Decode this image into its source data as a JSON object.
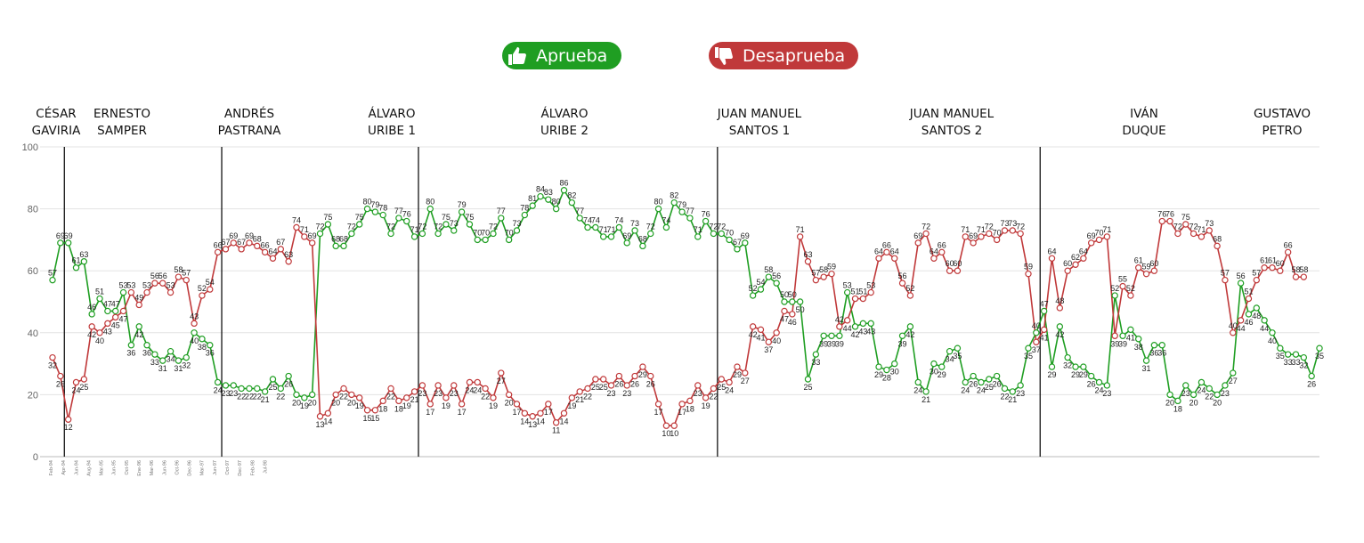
{
  "legend": {
    "approve": {
      "label": "Aprueba",
      "color": "#1f9e22"
    },
    "disapprove": {
      "label": "Desaprueba",
      "color": "#c0393a"
    }
  },
  "presidents": [
    {
      "name": "CÉSAR\nGAVIRIA"
    },
    {
      "name": "ERNESTO\nSAMPER"
    },
    {
      "name": "ANDRÉS\nPASTRANA"
    },
    {
      "name": "ÁLVARO\nURIBE 1"
    },
    {
      "name": "ÁLVARO\nURIBE 2"
    },
    {
      "name": "JUAN MANUEL\nSANTOS 1"
    },
    {
      "name": "JUAN MANUEL\nSANTOS 2"
    },
    {
      "name": "IVÁN\nDUQUE"
    },
    {
      "name": "GUSTAVO\nPETRO"
    }
  ],
  "chart_data": {
    "type": "line",
    "ylim": [
      0,
      100
    ],
    "yticks": [
      0,
      20,
      40,
      60,
      80,
      100
    ],
    "grid": true,
    "legend_placement": "top-center",
    "term_boundaries_after_index": [
      1,
      21,
      46,
      84,
      125,
      172,
      205,
      233
    ],
    "x_first_labels": [
      "Feb-94",
      "Apr-94",
      "Jun-94",
      "Aug-94",
      "Mar-95",
      "Jun-95",
      "Oct-95",
      "Ene-96",
      "Mar-96",
      "Jun-96",
      "Oct-96",
      "Dec-96",
      "Mar-97",
      "Jun-97",
      "Oct-97",
      "Dec-97",
      "Feb-98",
      "Jul-98"
    ],
    "series": [
      {
        "name": "Aprueba",
        "color": "#1f9e22",
        "values": [
          57,
          69,
          69,
          61,
          63,
          46,
          51,
          47,
          47,
          53,
          36,
          42,
          36,
          33,
          31,
          34,
          31,
          32,
          40,
          38,
          36,
          24,
          23,
          23,
          22,
          22,
          22,
          21,
          25,
          22,
          26,
          20,
          19,
          20,
          72,
          75,
          68,
          68,
          72,
          75,
          80,
          79,
          78,
          72,
          77,
          76,
          71,
          72,
          80,
          72,
          75,
          73,
          79,
          75,
          70,
          70,
          72,
          77,
          70,
          73,
          78,
          81,
          84,
          83,
          80,
          86,
          82,
          77,
          74,
          74,
          71,
          71,
          74,
          69,
          73,
          68,
          72,
          80,
          74,
          82,
          79,
          77,
          71,
          76,
          72,
          72,
          70,
          67,
          69,
          52,
          54,
          58,
          56,
          50,
          50,
          50,
          25,
          33,
          39,
          39,
          39,
          53,
          42,
          43,
          43,
          29,
          28,
          30,
          39,
          42,
          24,
          21,
          30,
          29,
          34,
          35,
          24,
          26,
          24,
          25,
          26,
          22,
          21,
          23,
          35,
          40,
          47,
          29,
          42,
          32,
          29,
          29,
          26,
          24,
          23,
          52,
          39,
          41,
          38,
          31,
          36,
          36,
          20,
          18,
          23,
          20,
          24,
          22,
          20,
          23,
          27,
          56,
          46,
          48,
          44,
          40,
          35,
          33,
          33,
          32,
          26,
          35
        ]
      },
      {
        "name": "Desaprueba",
        "color": "#c0393a",
        "values": [
          32,
          26,
          12,
          24,
          25,
          42,
          40,
          43,
          45,
          47,
          53,
          49,
          53,
          56,
          56,
          53,
          58,
          57,
          43,
          52,
          54,
          66,
          67,
          69,
          67,
          69,
          68,
          66,
          64,
          67,
          63,
          74,
          71,
          69,
          13,
          14,
          20,
          22,
          20,
          19,
          15,
          15,
          18,
          22,
          18,
          19,
          21,
          23,
          17,
          23,
          19,
          23,
          17,
          24,
          24,
          22,
          19,
          27,
          20,
          17,
          14,
          13,
          14,
          17,
          11,
          14,
          19,
          21,
          22,
          25,
          25,
          23,
          26,
          23,
          26,
          29,
          26,
          17,
          10,
          10,
          17,
          18,
          23,
          19,
          22,
          25,
          24,
          29,
          27,
          42,
          41,
          37,
          40,
          47,
          46,
          71,
          63,
          57,
          58,
          59,
          42,
          44,
          51,
          51,
          53,
          64,
          66,
          64,
          56,
          52,
          69,
          72,
          64,
          66,
          60,
          60,
          71,
          69,
          71,
          72,
          70,
          73,
          73,
          72,
          59,
          37,
          41,
          64,
          48,
          60,
          62,
          64,
          69,
          70,
          71,
          39,
          55,
          52,
          61,
          59,
          60,
          76,
          76,
          72,
          75,
          72,
          71,
          73,
          68,
          57,
          40,
          44,
          51,
          57,
          61,
          61,
          60,
          66,
          58,
          58
        ]
      }
    ]
  }
}
